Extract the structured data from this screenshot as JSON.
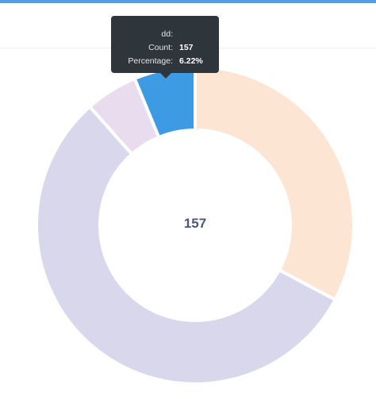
{
  "chart_data": {
    "type": "pie",
    "style": "donut",
    "center_value": "157",
    "slices": [
      {
        "value": 0.3278,
        "color": "#fde5d4"
      },
      {
        "value": 0.5566,
        "color": "#d9d7eb"
      },
      {
        "value": 0.0534,
        "color": "#e9dcef"
      },
      {
        "value": 0.0622,
        "color": "#3d9be4"
      }
    ]
  },
  "tooltip": {
    "title": "dd:",
    "rows": [
      {
        "key": "Count:",
        "value": "157"
      },
      {
        "key": "Percentage:",
        "value": "6.22%"
      }
    ]
  },
  "colors": {
    "accent": "#509ee3",
    "tooltip_bg": "#2e353b",
    "center_text": "#4c5773"
  }
}
